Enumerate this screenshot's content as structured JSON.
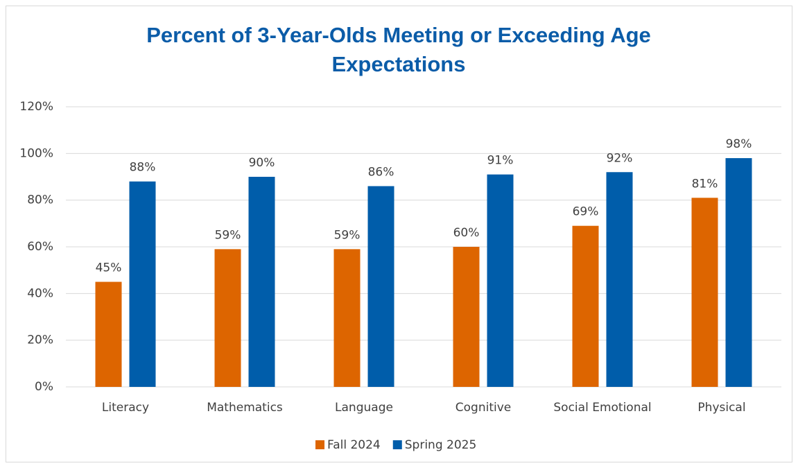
{
  "chart_data": {
    "type": "bar",
    "title": "Percent of 3-Year-Olds Meeting or Exceeding Age Expectations",
    "categories": [
      "Literacy",
      "Mathematics",
      "Language",
      "Cognitive",
      "Social Emotional",
      "Physical"
    ],
    "series": [
      {
        "name": "Fall 2024",
        "color": "#dd6500",
        "values": [
          45,
          59,
          59,
          60,
          69,
          81
        ],
        "value_labels": [
          "45%",
          "59%",
          "59%",
          "60%",
          "69%",
          "81%"
        ]
      },
      {
        "name": "Spring 2025",
        "color": "#005daa",
        "values": [
          88,
          90,
          86,
          91,
          92,
          98
        ],
        "value_labels": [
          "88%",
          "90%",
          "86%",
          "91%",
          "92%",
          "98%"
        ]
      }
    ],
    "ylim": [
      0,
      120
    ],
    "yticks": [
      {
        "value": 0,
        "label": "0%"
      },
      {
        "value": 20,
        "label": "20%"
      },
      {
        "value": 40,
        "label": "40%"
      },
      {
        "value": 60,
        "label": "60%"
      },
      {
        "value": 80,
        "label": "80%"
      },
      {
        "value": 100,
        "label": "100%"
      },
      {
        "value": 120,
        "label": "120%"
      }
    ],
    "grid": true,
    "legend": "bottom"
  }
}
